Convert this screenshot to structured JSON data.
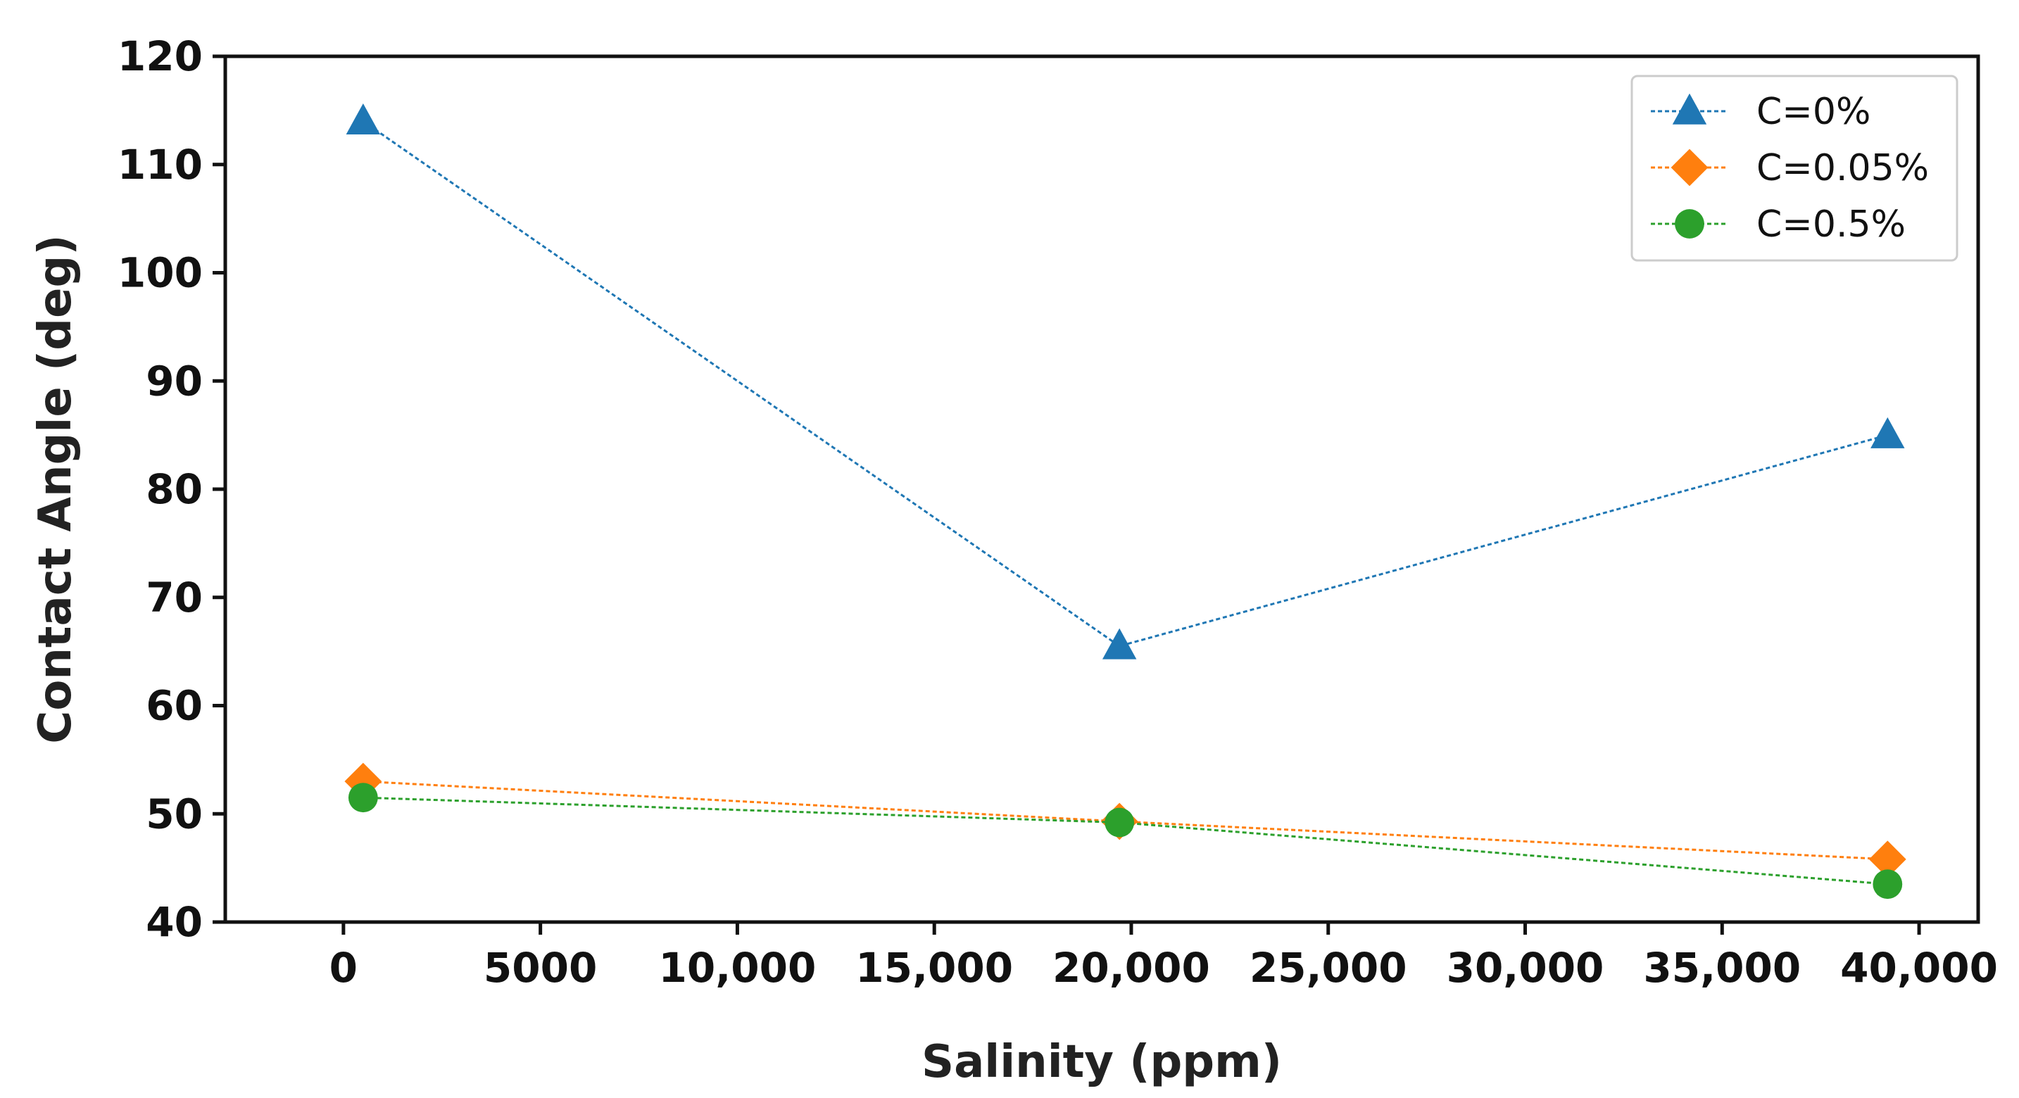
{
  "chart_data": {
    "type": "line",
    "title": "",
    "xlabel": "Salinity (ppm)",
    "ylabel": "Contact Angle (deg)",
    "xlim": [
      -3000,
      41500
    ],
    "ylim": [
      40,
      120
    ],
    "xticks": [
      0,
      5000,
      10000,
      15000,
      20000,
      25000,
      30000,
      35000,
      40000
    ],
    "xtick_labels": [
      "0",
      "5000",
      "10,000",
      "15,000",
      "20,000",
      "25,000",
      "30,000",
      "35,000",
      "40,000"
    ],
    "yticks": [
      40,
      50,
      60,
      70,
      80,
      90,
      100,
      110,
      120
    ],
    "ytick_labels": [
      "40",
      "50",
      "60",
      "70",
      "80",
      "90",
      "100",
      "110",
      "120"
    ],
    "legend_position": "top-right",
    "grid": false,
    "series": [
      {
        "name": "C=0%",
        "color": "#1f77b4",
        "marker": "triangle",
        "x": [
          500,
          19700,
          39200
        ],
        "y": [
          114,
          65.5,
          85
        ]
      },
      {
        "name": "C=0.05%",
        "color": "#ff7f0e",
        "marker": "diamond",
        "x": [
          500,
          19700,
          39200
        ],
        "y": [
          53,
          49.3,
          45.8
        ]
      },
      {
        "name": "C=0.5%",
        "color": "#2ca02c",
        "marker": "circle",
        "x": [
          500,
          19700,
          39200
        ],
        "y": [
          51.5,
          49.2,
          43.5
        ]
      }
    ]
  }
}
